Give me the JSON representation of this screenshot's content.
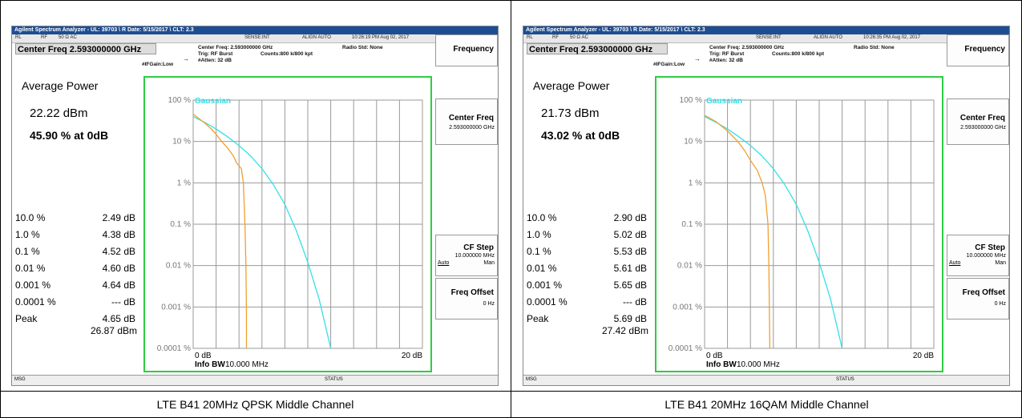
{
  "panels": [
    {
      "titlebar": "Agilent Spectrum Analyzer - UL: 39703 \\ R Date: 5/15/2017 \\ CLT: 2.3",
      "ctrl": {
        "rl": "RL",
        "rf": "RF",
        "ohm": "50 Ω  AC",
        "sense": "SENSE:INT",
        "align": "ALIGN AUTO",
        "time": "10:26:19 PM Aug 02, 2017"
      },
      "center_freq_box": "Center Freq 2.593000000 GHz",
      "meta": {
        "cf": "Center Freq: 2.593000000 GHz",
        "trig": "Trig: RF Burst",
        "counts": "Counts:800 k/800 kpt",
        "atten": "#Atten: 32 dB",
        "ifgain": "#IFGain:Low",
        "radio": "Radio Std: None"
      },
      "avg_title": "Average Power",
      "avg_dbm": "22.22 dBm",
      "avg_pct": "45.90 % at 0dB",
      "rows": [
        {
          "label": "10.0 %",
          "value": "2.49 dB"
        },
        {
          "label": "1.0 %",
          "value": "4.38 dB"
        },
        {
          "label": "0.1 %",
          "value": "4.52 dB"
        },
        {
          "label": "0.01 %",
          "value": "4.60 dB"
        },
        {
          "label": "0.001 %",
          "value": "4.64 dB"
        },
        {
          "label": "0.0001 %",
          "value": "--- dB"
        },
        {
          "label": "Peak",
          "value": "4.65 dB"
        }
      ],
      "peak_dbm": "26.87 dBm",
      "softkeys": {
        "frequency": "Frequency",
        "center_freq": "Center Freq",
        "center_freq_val": "2.593000000 GHz",
        "cf_step": "CF Step",
        "cf_step_val": "10.000000 MHz",
        "auto": "Auto",
        "man": "Man",
        "freq_offset": "Freq Offset",
        "freq_offset_val": "0 Hz"
      },
      "status": {
        "msg": "MSG",
        "status": "STATUS"
      },
      "caption": "LTE B41 20MHz QPSK Middle Channel"
    },
    {
      "titlebar": "Agilent Spectrum Analyzer - UL: 39703 \\ R Date: 5/15/2017 \\ CLT: 2.3",
      "ctrl": {
        "rl": "RL",
        "rf": "RF",
        "ohm": "50 Ω  AC",
        "sense": "SENSE:INT",
        "align": "ALIGN AUTO",
        "time": "10:26:35 PM Aug 02, 2017"
      },
      "center_freq_box": "Center Freq 2.593000000 GHz",
      "meta": {
        "cf": "Center Freq: 2.593000000 GHz",
        "trig": "Trig: RF Burst",
        "counts": "Counts:800 k/800 kpt",
        "atten": "#Atten: 32 dB",
        "ifgain": "#IFGain:Low",
        "radio": "Radio Std: None"
      },
      "avg_title": "Average Power",
      "avg_dbm": "21.73 dBm",
      "avg_pct": "43.02 % at 0dB",
      "rows": [
        {
          "label": "10.0 %",
          "value": "2.90 dB"
        },
        {
          "label": "1.0 %",
          "value": "5.02 dB"
        },
        {
          "label": "0.1 %",
          "value": "5.53 dB"
        },
        {
          "label": "0.01 %",
          "value": "5.61 dB"
        },
        {
          "label": "0.001 %",
          "value": "5.65 dB"
        },
        {
          "label": "0.0001 %",
          "value": "--- dB"
        },
        {
          "label": "Peak",
          "value": "5.69 dB"
        }
      ],
      "peak_dbm": "27.42 dBm",
      "softkeys": {
        "frequency": "Frequency",
        "center_freq": "Center Freq",
        "center_freq_val": "2.593000000 GHz",
        "cf_step": "CF Step",
        "cf_step_val": "10.000000 MHz",
        "auto": "Auto",
        "man": "Man",
        "freq_offset": "Freq Offset",
        "freq_offset_val": "0 Hz"
      },
      "status": {
        "msg": "MSG",
        "status": "STATUS"
      },
      "caption": "LTE B41 20MHz 16QAM Middle Channel"
    }
  ],
  "chart_data": [
    {
      "type": "line",
      "x_unit": "dB",
      "xlim": [
        0,
        20
      ],
      "y_scale": "log",
      "ylim": [
        0.0001,
        100
      ],
      "yticks": [
        "100 %",
        "10 %",
        "1 %",
        "0.1 %",
        "0.01 %",
        "0.001 %",
        "0.0001 %"
      ],
      "xtick_left": "0 dB",
      "xtick_right": "20 dB",
      "info_bw_label": "Info BW",
      "info_bw_value": "10.000 MHz",
      "grid": true,
      "series": [
        {
          "name": "Gaussian",
          "color": "#33e0e8",
          "points": [
            [
              0,
              40
            ],
            [
              1,
              29
            ],
            [
              2,
              20
            ],
            [
              3,
              13
            ],
            [
              4,
              8
            ],
            [
              5,
              4.5
            ],
            [
              6,
              2.2
            ],
            [
              7,
              0.9
            ],
            [
              8,
              0.3
            ],
            [
              9,
              0.07
            ],
            [
              10,
              0.012
            ],
            [
              11,
              0.0015
            ],
            [
              12,
              0.0001
            ]
          ]
        },
        {
          "color": "#f0a030",
          "points": [
            [
              0,
              45.9
            ],
            [
              1,
              28
            ],
            [
              1.5,
              21
            ],
            [
              2,
              15
            ],
            [
              2.49,
              10
            ],
            [
              3,
              7
            ],
            [
              3.5,
              4.5
            ],
            [
              3.8,
              3
            ],
            [
              4.2,
              2.2
            ],
            [
              4.38,
              1.0
            ],
            [
              4.52,
              0.1
            ],
            [
              4.6,
              0.01
            ],
            [
              4.64,
              0.001
            ],
            [
              4.65,
              0.0001
            ]
          ]
        }
      ]
    },
    {
      "type": "line",
      "x_unit": "dB",
      "xlim": [
        0,
        20
      ],
      "y_scale": "log",
      "ylim": [
        0.0001,
        100
      ],
      "yticks": [
        "100 %",
        "10 %",
        "1 %",
        "0.1 %",
        "0.01 %",
        "0.001 %",
        "0.0001 %"
      ],
      "xtick_left": "0 dB",
      "xtick_right": "20 dB",
      "info_bw_label": "Info BW",
      "info_bw_value": "10.000 MHz",
      "grid": true,
      "series": [
        {
          "name": "Gaussian",
          "color": "#33e0e8",
          "points": [
            [
              0,
              40
            ],
            [
              1,
              29
            ],
            [
              2,
              20
            ],
            [
              3,
              13
            ],
            [
              4,
              8
            ],
            [
              5,
              4.5
            ],
            [
              6,
              2.2
            ],
            [
              7,
              0.9
            ],
            [
              8,
              0.3
            ],
            [
              9,
              0.07
            ],
            [
              10,
              0.012
            ],
            [
              11,
              0.0015
            ],
            [
              12,
              0.0001
            ]
          ]
        },
        {
          "color": "#f0a030",
          "points": [
            [
              0,
              43.02
            ],
            [
              1,
              30
            ],
            [
              2,
              18
            ],
            [
              2.9,
              10
            ],
            [
              3.5,
              6
            ],
            [
              4,
              3.5
            ],
            [
              4.6,
              2
            ],
            [
              5.02,
              1.0
            ],
            [
              5.3,
              0.5
            ],
            [
              5.53,
              0.1
            ],
            [
              5.61,
              0.01
            ],
            [
              5.65,
              0.001
            ],
            [
              5.69,
              0.0001
            ]
          ]
        }
      ]
    }
  ]
}
